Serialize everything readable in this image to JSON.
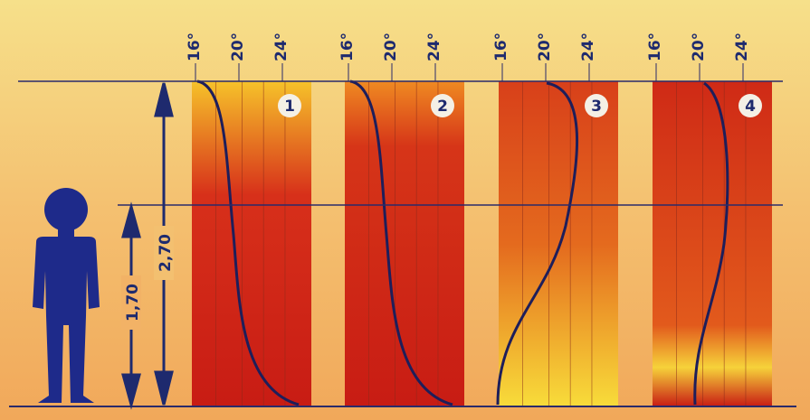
{
  "panels": [
    {
      "number": "1",
      "ticks": [
        "16°",
        "20°",
        "24°"
      ]
    },
    {
      "number": "2",
      "ticks": [
        "16°",
        "20°",
        "24°"
      ]
    },
    {
      "number": "3",
      "ticks": [
        "16°",
        "20°",
        "24°"
      ]
    },
    {
      "number": "4",
      "ticks": [
        "16°",
        "20°",
        "24°"
      ]
    }
  ],
  "dimensions": {
    "room_height": "2,70",
    "person_height": "1,70"
  }
}
